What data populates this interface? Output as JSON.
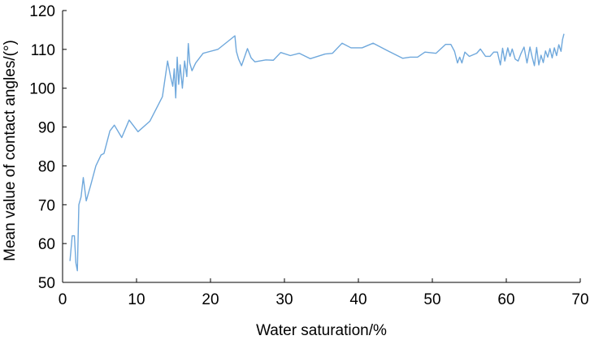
{
  "chart_data": {
    "type": "line",
    "xlabel": "Water saturation/%",
    "ylabel": "Mean value of contact angles/(°)",
    "xlim": [
      0,
      70
    ],
    "ylim": [
      50,
      120
    ],
    "x_ticks": [
      0,
      10,
      20,
      30,
      40,
      50,
      60,
      70
    ],
    "y_ticks": [
      50,
      60,
      70,
      80,
      90,
      100,
      110,
      120
    ],
    "grid": false,
    "legend": "none",
    "line_color": "#6fa8dc",
    "series": [
      {
        "x": [
          1.0,
          1.3,
          1.6,
          1.8,
          2.0,
          2.2,
          2.5,
          2.8,
          3.2,
          3.8,
          4.5,
          5.2,
          5.6,
          6.4,
          7.0,
          8.0,
          9.0,
          10.2,
          11.8,
          13.5,
          14.2,
          14.6,
          14.9,
          15.1,
          15.3,
          15.5,
          15.7,
          15.9,
          16.2,
          16.5,
          16.8,
          17.0,
          17.2,
          17.5,
          18.0,
          19.0,
          21.0,
          23.3,
          23.5,
          23.8,
          24.2,
          25.0,
          25.5,
          26.0,
          27.5,
          28.5,
          29.5,
          30.8,
          32.0,
          33.5,
          35.5,
          36.5,
          37.8,
          39.0,
          40.5,
          42.0,
          44.0,
          46.0,
          47.0,
          48.0,
          49.0,
          50.5,
          51.8,
          52.5,
          53.0,
          53.4,
          53.7,
          54.0,
          54.4,
          55.0,
          56.0,
          56.5,
          57.2,
          57.8,
          58.3,
          58.8,
          59.2,
          59.5,
          59.8,
          60.2,
          60.5,
          60.8,
          61.2,
          61.6,
          62.0,
          62.4,
          62.8,
          63.2,
          63.5,
          63.8,
          64.1,
          64.4,
          64.7,
          65.0,
          65.3,
          65.6,
          65.9,
          66.2,
          66.5,
          66.8,
          67.1,
          67.4,
          67.6,
          67.8
        ],
        "y": [
          55.5,
          62.0,
          62.0,
          55.0,
          53.0,
          70.0,
          72.0,
          77.0,
          71.0,
          75.0,
          80.0,
          82.8,
          83.2,
          89.0,
          90.5,
          87.3,
          91.8,
          88.8,
          91.5,
          97.8,
          107.0,
          103.0,
          100.5,
          105.0,
          97.5,
          108.0,
          101.0,
          106.0,
          100.0,
          107.0,
          103.0,
          111.5,
          106.5,
          104.5,
          106.5,
          109.0,
          110.0,
          113.5,
          109.5,
          107.5,
          105.8,
          110.2,
          107.8,
          106.8,
          107.3,
          107.2,
          109.2,
          108.4,
          109.0,
          107.6,
          108.8,
          109.0,
          111.6,
          110.4,
          110.4,
          111.6,
          109.6,
          107.7,
          108.0,
          108.0,
          109.3,
          109.0,
          111.3,
          111.3,
          109.5,
          106.5,
          108.0,
          106.5,
          109.3,
          108.2,
          109.0,
          110.1,
          108.2,
          108.2,
          109.3,
          109.3,
          106.0,
          110.3,
          107.0,
          110.4,
          108.2,
          110.1,
          107.5,
          107.0,
          109.0,
          110.6,
          106.5,
          110.6,
          108.0,
          105.8,
          110.5,
          106.0,
          108.5,
          106.6,
          109.6,
          108.0,
          110.2,
          107.8,
          110.4,
          108.4,
          111.2,
          109.5,
          112.5,
          114.0
        ]
      }
    ]
  }
}
